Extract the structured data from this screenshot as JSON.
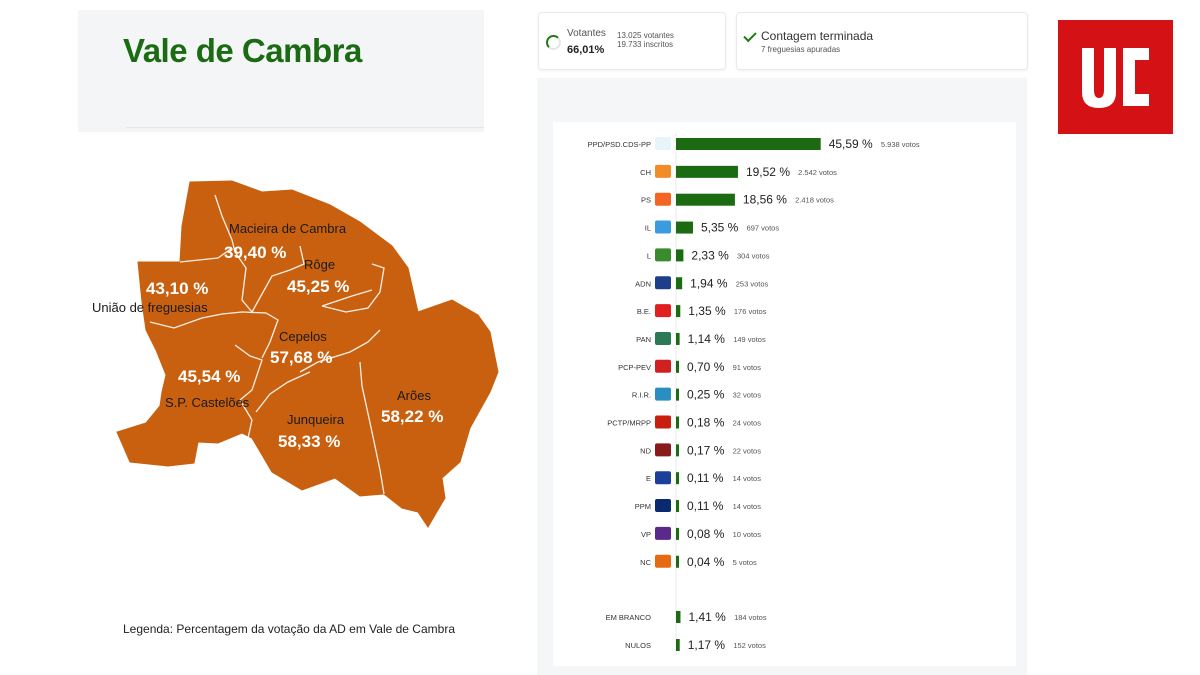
{
  "map": {
    "title": "Vale de Cambra",
    "legend": "Legenda: Percentagem da votação da AD em Vale de Cambra",
    "fill_color": "#c8600f",
    "regions": [
      {
        "name": "Macieira de Cambra",
        "value": "39,40 %"
      },
      {
        "name": "Rôge",
        "value": "45,25 %"
      },
      {
        "name": "União de freguesias",
        "value": "43,10 %"
      },
      {
        "name": "Cepelos",
        "value": "57,68 %"
      },
      {
        "name": "S.P. Castelões",
        "value": "45,54 %"
      },
      {
        "name": "Junqueira",
        "value": "58,33 %"
      },
      {
        "name": "Arões",
        "value": "58,22 %"
      }
    ]
  },
  "summary": {
    "votantes_label": "Votantes",
    "votantes_pct": "66,01%",
    "votantes_count": "13.025 votantes",
    "inscritos_count": "19.733 inscritos",
    "contagem_label": "Contagem terminada",
    "freguesias": "7 freguesias apuradas"
  },
  "colors": {
    "bar": "#1a6b12",
    "brand_red": "#d41216"
  },
  "logo_text": "UC",
  "chart_data": {
    "type": "bar",
    "orientation": "horizontal",
    "categories": [
      "PPD/PSD.CDS-PP",
      "CH",
      "PS",
      "IL",
      "L",
      "ADN",
      "B.E.",
      "PAN",
      "PCP-PEV",
      "R.I.R.",
      "PCTP/MRPP",
      "ND",
      "E",
      "PPM",
      "VP",
      "NC",
      "EM BRANCO",
      "NULOS"
    ],
    "values": [
      45.59,
      19.52,
      18.56,
      5.35,
      2.33,
      1.94,
      1.35,
      1.14,
      0.7,
      0.25,
      0.18,
      0.17,
      0.11,
      0.11,
      0.08,
      0.04,
      1.41,
      1.17
    ],
    "pct_labels": [
      "45,59 %",
      "19,52 %",
      "18,56 %",
      "5,35 %",
      "2,33 %",
      "1,94 %",
      "1,35 %",
      "1,14 %",
      "0,70 %",
      "0,25 %",
      "0,18 %",
      "0,17 %",
      "0,11 %",
      "0,11 %",
      "0,08 %",
      "0,04 %",
      "1,41 %",
      "1,17 %"
    ],
    "vote_labels": [
      "5.938 votos",
      "2.542 votos",
      "2.418 votos",
      "697 votos",
      "304 votos",
      "253 votos",
      "176 votos",
      "149 votos",
      "91 votos",
      "32 votos",
      "24 votos",
      "22 votos",
      "14 votos",
      "14 votos",
      "10 votos",
      "5 votos",
      "184 votos",
      "152 votos"
    ],
    "icon_colors": [
      "#e8f4fc",
      "#f28c28",
      "#f26522",
      "#3a9be0",
      "#3a8a2e",
      "#1d3e8a",
      "#e02020",
      "#2a7a55",
      "#d12020",
      "#2a8fc0",
      "#c8200f",
      "#8a1a1a",
      "#1c3f9c",
      "#0a2a70",
      "#5a2a8a",
      "#e86a10",
      null,
      null
    ],
    "xlim": [
      0,
      46
    ]
  }
}
